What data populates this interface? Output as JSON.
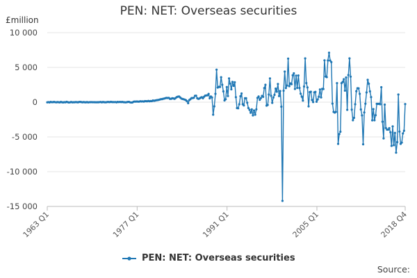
{
  "chart_data": {
    "type": "line",
    "title": "PEN: NET: Overseas securities",
    "ylabel": "£million",
    "xlabel": "",
    "ylim": [
      -15000,
      10000
    ],
    "yticks": [
      10000,
      5000,
      0,
      -5000,
      -10000,
      -15000
    ],
    "ytick_labels": [
      "10 000",
      "5 000",
      "0",
      "-5 000",
      "-10 000",
      "-15 000"
    ],
    "x_start": "1963 Q1",
    "x_end": "2018 Q4",
    "xticks": [
      "1963 Q1",
      "1977 Q1",
      "1991 Q1",
      "2005 Q1",
      "2018 Q4"
    ],
    "grid": "horizontal",
    "legend": "bottom",
    "source_label": "Source:",
    "series": [
      {
        "name": "PEN: NET: Overseas securities",
        "color": "#1f77b4",
        "values": [
          -25,
          4,
          -40,
          35,
          -4,
          2,
          35,
          -5,
          -21,
          16,
          -8,
          -33,
          39,
          -12,
          -38,
          0,
          -21,
          47,
          -1,
          -45,
          -19,
          32,
          -24,
          -11,
          -14,
          14,
          2,
          -27,
          22,
          40,
          10,
          -21,
          12,
          -14,
          -24,
          17,
          -33,
          -4,
          0,
          7,
          -7,
          -4,
          -10,
          -17,
          -13,
          -14,
          7,
          29,
          -20,
          28,
          -2,
          -20,
          -7,
          29,
          24,
          6,
          48,
          15,
          13,
          7,
          21,
          -28,
          39,
          8,
          42,
          12,
          35,
          -1,
          -10,
          -30,
          1,
          39,
          36,
          -31,
          -48,
          -40,
          70,
          90,
          80,
          100,
          70,
          90,
          130,
          100,
          120,
          90,
          150,
          140,
          130,
          180,
          130,
          160,
          150,
          240,
          200,
          240,
          280,
          300,
          330,
          380,
          430,
          440,
          490,
          520,
          580,
          610,
          600,
          620,
          480,
          480,
          560,
          540,
          480,
          600,
          730,
          790,
          810,
          680,
          520,
          460,
          420,
          370,
          290,
          140,
          -150,
          300,
          430,
          590,
          590,
          640,
          920,
          930,
          560,
          470,
          530,
          650,
          720,
          560,
          780,
          940,
          970,
          990,
          1190,
          550,
          820,
          680,
          -1800,
          -600,
          1200,
          4680,
          2100,
          2200,
          2190,
          3590,
          2500,
          1550,
          250,
          420,
          2180,
          880,
          3420,
          2670,
          1850,
          2910,
          2350,
          2860,
          720,
          -850,
          -880,
          -300,
          850,
          1250,
          -300,
          -470,
          560,
          560,
          -80,
          -840,
          -1100,
          -1520,
          -1030,
          -1900,
          -1200,
          -1800,
          -1030,
          620,
          820,
          340,
          580,
          900,
          760,
          2030,
          2500,
          -500,
          -400,
          1100,
          3420,
          920,
          -100,
          680,
          1050,
          1950,
          1510,
          2620,
          880,
          1600,
          -650,
          -14200,
          1650,
          4400,
          2030,
          2400,
          6270,
          2300,
          2700,
          2590,
          3870,
          4150,
          1900,
          3820,
          2050,
          3840,
          2040,
          1220,
          790,
          230,
          2250,
          6300,
          2750,
          2110,
          -600,
          1450,
          1500,
          310,
          10,
          1420,
          1480,
          60,
          390,
          790,
          1830,
          690,
          1910,
          1890,
          6020,
          3690,
          3600,
          6000,
          7120,
          5990,
          5760,
          -210,
          -1400,
          -1500,
          -1400,
          2740,
          -6000,
          -4600,
          -4250,
          2740,
          2910,
          3300,
          1660,
          3550,
          -1100,
          3900,
          6300,
          3670,
          -1070,
          -2600,
          -2250,
          -300,
          1580,
          2000,
          1990,
          1200,
          -1050,
          -1900,
          -6060,
          -1480,
          -220,
          1400,
          3220,
          2650,
          1550,
          730,
          -2610,
          -1000,
          -2600,
          -1870,
          -240,
          -250,
          -240,
          -300,
          2150,
          -2810,
          -5210,
          -350,
          -3720,
          -3950,
          -3950,
          -3730,
          -4330,
          -6290,
          -3480,
          -6190,
          -4420,
          -7260,
          -5750,
          1100,
          -4230,
          -6000,
          -5810,
          -4500,
          -4110,
          -270
        ]
      }
    ]
  }
}
